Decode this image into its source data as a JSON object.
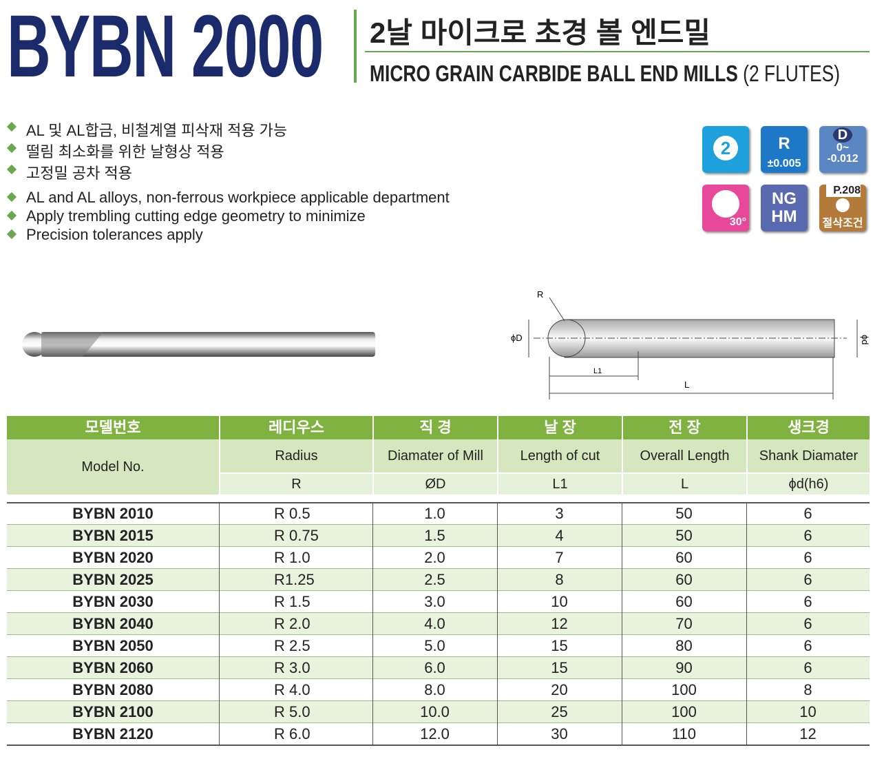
{
  "header": {
    "model": "BYBN 2000",
    "title_kr": "2날 마이크로 초경 볼 엔드밀",
    "title_en": "MICRO GRAIN CARBIDE BALL END MILLS",
    "title_en_suffix": "(2 FLUTES)"
  },
  "features_kr": [
    "AL 및 AL합금, 비철계열 피삭재 적용 가능",
    "떨림 최소화를 위한 날형상 적용",
    "고정밀 공차 적용"
  ],
  "features_en": [
    "AL and AL alloys, non-ferrous workpiece applicable department",
    "Apply trembling cutting edge geometry to minimize",
    "Precision tolerances apply"
  ],
  "icons": {
    "flutes": "2",
    "radius": "R",
    "radius_tol": "±0.005",
    "dia": "D",
    "dia_tol_1": "0~",
    "dia_tol_2": "-0.012",
    "helix": "30°",
    "grade_1": "NG",
    "grade_2": "HM",
    "page": "P.208",
    "cutting": "절삭조건"
  },
  "diagram": {
    "r": "R",
    "phi_d_big": "ϕD",
    "l1": "L1",
    "l": "L",
    "phi_d": "ϕd"
  },
  "table": {
    "header_kr": [
      "모델번호",
      "레디우스",
      "직  경",
      "날  장",
      "전  장",
      "생크경"
    ],
    "header_en": [
      "Model No.",
      "Radius",
      "Diamater of Mill",
      "Length of cut",
      "Overall Length",
      "Shank Diamater"
    ],
    "symbols": [
      "R",
      "ØD",
      "L1",
      "L",
      "ϕd(h6)"
    ],
    "rows": [
      [
        "BYBN 2010",
        "R 0.5",
        "1.0",
        "3",
        "50",
        "6"
      ],
      [
        "BYBN 2015",
        "R 0.75",
        "1.5",
        "4",
        "50",
        "6"
      ],
      [
        "BYBN 2020",
        "R 1.0",
        "2.0",
        "7",
        "60",
        "6"
      ],
      [
        "BYBN 2025",
        "R1.25",
        "2.5",
        "8",
        "60",
        "6"
      ],
      [
        "BYBN 2030",
        "R 1.5",
        "3.0",
        "10",
        "60",
        "6"
      ],
      [
        "BYBN 2040",
        "R 2.0",
        "4.0",
        "12",
        "70",
        "6"
      ],
      [
        "BYBN 2050",
        "R 2.5",
        "5.0",
        "15",
        "80",
        "6"
      ],
      [
        "BYBN 2060",
        "R 3.0",
        "6.0",
        "15",
        "90",
        "6"
      ],
      [
        "BYBN 2080",
        "R 4.0",
        "8.0",
        "20",
        "100",
        "8"
      ],
      [
        "BYBN 2100",
        "R 5.0",
        "10.0",
        "25",
        "100",
        "10"
      ],
      [
        "BYBN 2120",
        "R 6.0",
        "12.0",
        "30",
        "110",
        "12"
      ]
    ]
  }
}
